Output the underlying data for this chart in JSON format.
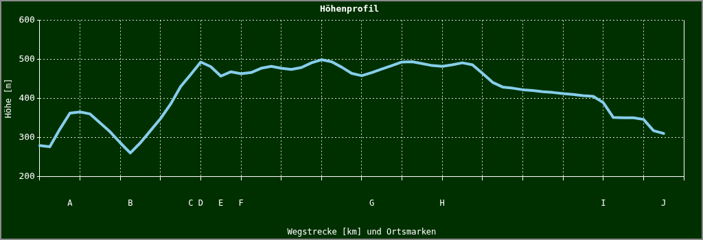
{
  "chart_data": {
    "type": "line",
    "title": "Höhenprofil",
    "xlabel": "Wegstrecke [km] und Ortsmarken",
    "ylabel": "Höhe [m]",
    "categories": [
      null,
      null,
      null,
      "A",
      null,
      null,
      null,
      null,
      null,
      "B",
      null,
      null,
      null,
      null,
      null,
      "C",
      "D",
      null,
      "E",
      null,
      "F",
      null,
      null,
      null,
      null,
      null,
      null,
      null,
      null,
      null,
      null,
      null,
      null,
      "G",
      null,
      null,
      null,
      null,
      null,
      null,
      "H",
      null,
      null,
      null,
      null,
      null,
      null,
      null,
      null,
      null,
      null,
      null,
      null,
      null,
      null,
      null,
      "I",
      null,
      null,
      null,
      null,
      null,
      "J",
      null,
      null
    ],
    "values": [
      279,
      276,
      321,
      362,
      365,
      360,
      337,
      314,
      286,
      260,
      286,
      317,
      348,
      385,
      430,
      461,
      493,
      481,
      457,
      468,
      463,
      466,
      477,
      482,
      477,
      474,
      479,
      491,
      499,
      494,
      480,
      464,
      458,
      466,
      475,
      484,
      493,
      494,
      489,
      484,
      482,
      486,
      491,
      486,
      464,
      441,
      429,
      426,
      422,
      420,
      417,
      415,
      412,
      410,
      407,
      405,
      389,
      351,
      350,
      350,
      346,
      317,
      310,
      null,
      null
    ],
    "color": "#87ceeb",
    "ylim": [
      200,
      600
    ],
    "yticks": [
      200,
      300,
      400,
      500,
      600
    ],
    "grid": true
  }
}
